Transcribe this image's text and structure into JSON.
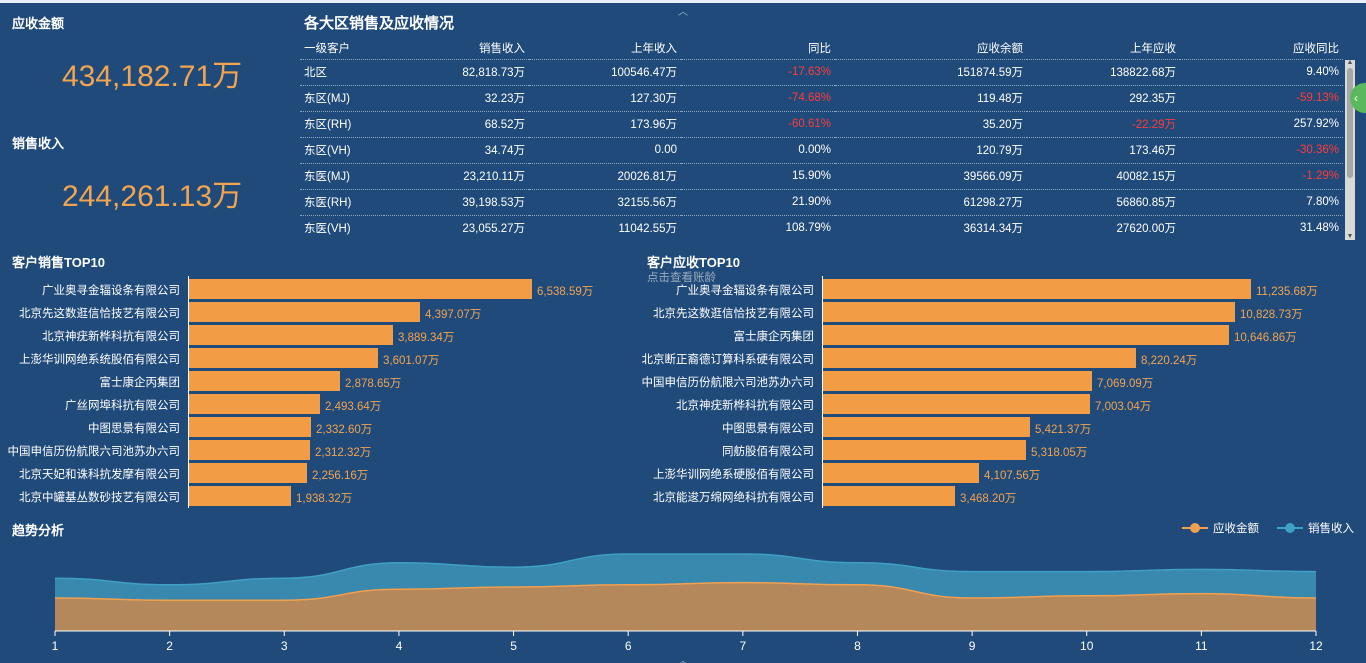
{
  "kpi": {
    "receivable_label": "应收金额",
    "receivable_value": "434,182.71万",
    "sales_label": "销售收入",
    "sales_value": "244,261.13万"
  },
  "region_table": {
    "title": "各大区销售及应收情况",
    "headers": [
      "一级客户",
      "销售收入",
      "上年收入",
      "同比",
      "应收余额",
      "上年应收",
      "应收同比"
    ],
    "rows": [
      [
        "北区",
        "82,818.73万",
        "100546.47万",
        "-17.63%",
        "151874.59万",
        "138822.68万",
        "9.40%"
      ],
      [
        "东区(MJ)",
        "32.23万",
        "127.30万",
        "-74.68%",
        "119.48万",
        "292.35万",
        "-59.13%"
      ],
      [
        "东区(RH)",
        "68.52万",
        "173.96万",
        "-60.61%",
        "35.20万",
        "-22.29万",
        "257.92%"
      ],
      [
        "东区(VH)",
        "34.74万",
        "0.00",
        "0.00%",
        "120.79万",
        "173.46万",
        "-30.36%"
      ],
      [
        "东医(MJ)",
        "23,210.11万",
        "20026.81万",
        "15.90%",
        "39566.09万",
        "40082.15万",
        "-1.29%"
      ],
      [
        "东医(RH)",
        "39,198.53万",
        "32155.56万",
        "21.90%",
        "61298.27万",
        "56860.85万",
        "7.80%"
      ],
      [
        "东医(VH)",
        "23,055.27万",
        "11042.55万",
        "108.79%",
        "36314.34万",
        "27620.00万",
        "31.48%"
      ]
    ]
  },
  "sales_top10": {
    "title": "客户销售TOP10",
    "items": [
      {
        "name": "广业奥寻金辐设条有限公司",
        "value": 6538.59,
        "label": "6,538.59万"
      },
      {
        "name": "北京先这数逛信恰技艺有限公司",
        "value": 4397.07,
        "label": "4,397.07万"
      },
      {
        "name": "北京神疣新桦科抗有限公司",
        "value": 3889.34,
        "label": "3,889.34万"
      },
      {
        "name": "上澎华训网绝系统股佰有限公司",
        "value": 3601.07,
        "label": "3,601.07万"
      },
      {
        "name": "富士康企丙集团",
        "value": 2878.65,
        "label": "2,878.65万"
      },
      {
        "name": "广丝网埠科抗有限公司",
        "value": 2493.64,
        "label": "2,493.64万"
      },
      {
        "name": "中图思景有限公司",
        "value": 2332.6,
        "label": "2,332.60万"
      },
      {
        "name": "中国申信历份航限六司池苏办六司",
        "value": 2312.32,
        "label": "2,312.32万"
      },
      {
        "name": "北京天妃和诛科抗发摩有限公司",
        "value": 2256.16,
        "label": "2,256.16万"
      },
      {
        "name": "北京中罐基丛数砂技艺有限公司",
        "value": 1938.32,
        "label": "1,938.32万"
      }
    ]
  },
  "receivable_top10": {
    "title": "客户应收TOP10",
    "hint": "点击查看账龄",
    "items": [
      {
        "name": "广业奥寻金辐设条有限公司",
        "value": 11235.68,
        "label": "11,235.68万"
      },
      {
        "name": "北京先这数逛信恰技艺有限公司",
        "value": 10828.73,
        "label": "10,828.73万"
      },
      {
        "name": "富士康企丙集团",
        "value": 10646.86,
        "label": "10,646.86万"
      },
      {
        "name": "北京断正裔德订算科系硬有限公司",
        "value": 8220.24,
        "label": "8,220.24万"
      },
      {
        "name": "中国申信历份航限六司池苏办六司",
        "value": 7069.09,
        "label": "7,069.09万"
      },
      {
        "name": "北京神疣新桦科抗有限公司",
        "value": 7003.04,
        "label": "7,003.04万"
      },
      {
        "name": "中图思景有限公司",
        "value": 5421.37,
        "label": "5,421.37万"
      },
      {
        "name": "同舫股佰有限公司",
        "value": 5318.05,
        "label": "5,318.05万"
      },
      {
        "name": "上澎华训网绝系硬股佰有限公司",
        "value": 4107.56,
        "label": "4,107.56万"
      },
      {
        "name": "北京能逡万绵网绝科抗有限公司",
        "value": 3468.2,
        "label": "3,468.20万"
      }
    ]
  },
  "trend": {
    "title": "趋势分析",
    "legend": [
      "应收金额",
      "销售收入"
    ]
  },
  "chart_data": {
    "type": "area",
    "title": "趋势分析",
    "x": [
      1,
      2,
      3,
      4,
      5,
      6,
      7,
      8,
      9,
      10,
      11,
      12
    ],
    "xlabel": "",
    "ylabel": "",
    "ylim": [
      0,
      40
    ],
    "series": [
      {
        "name": "应收金额",
        "color": "#f0a050",
        "values": [
          15,
          14,
          14,
          19,
          20,
          21,
          22,
          21,
          15,
          16,
          17,
          15
        ]
      },
      {
        "name": "销售收入",
        "color": "#3ea0c4",
        "values": [
          24,
          21,
          24,
          31,
          29,
          35,
          35,
          31,
          27,
          27,
          28,
          27
        ]
      }
    ]
  },
  "colors": {
    "background": "#1f4a7a",
    "accent": "#f2a451",
    "bar": "#f29d45",
    "negative": "#ff3b3b"
  }
}
